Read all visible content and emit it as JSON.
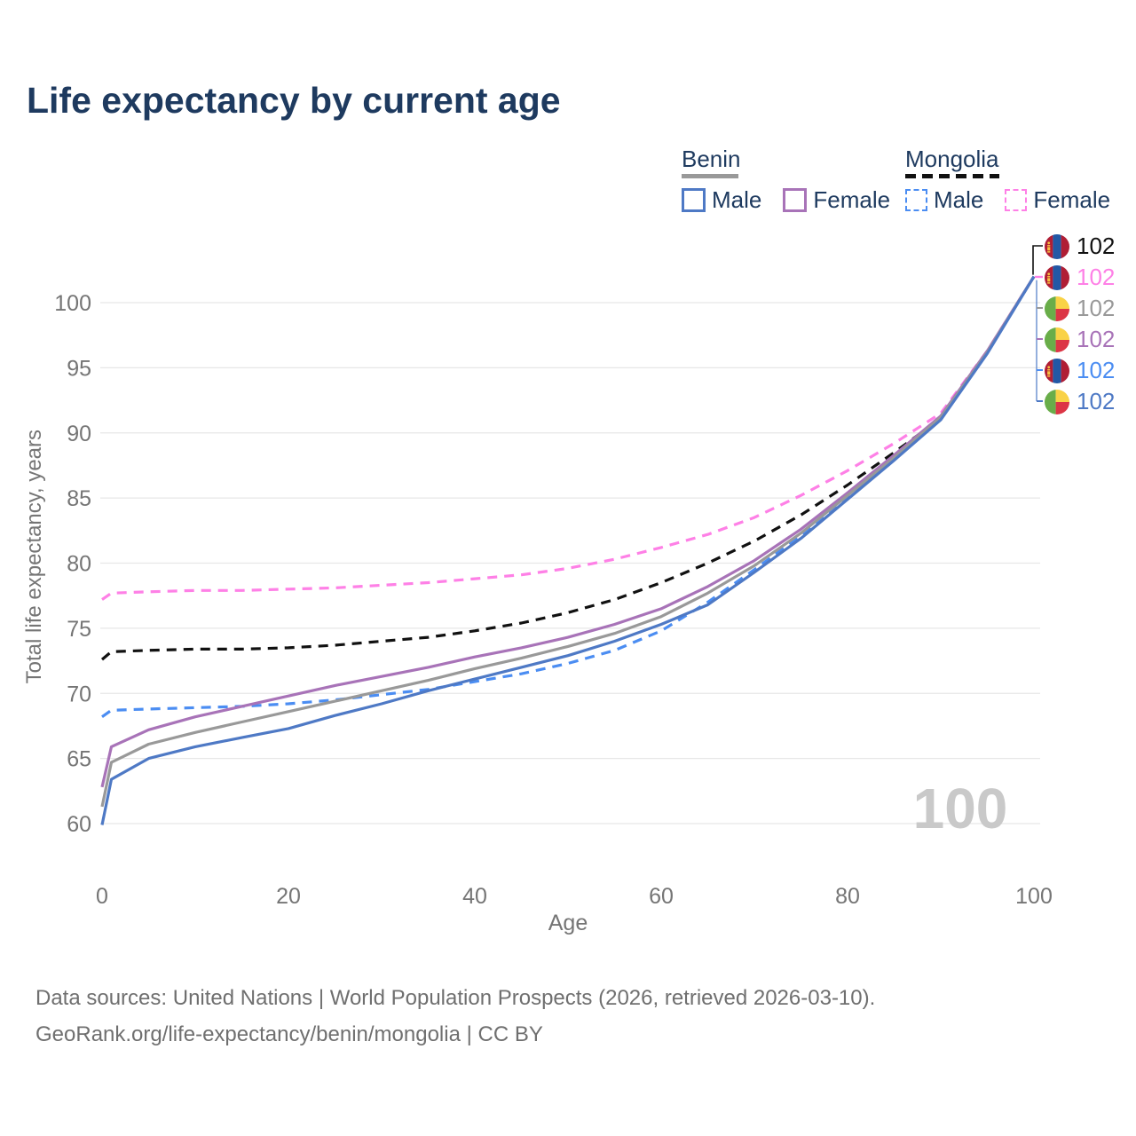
{
  "title": "Life expectancy by current age",
  "watermark": "100",
  "colors": {
    "title_text": "#1e3a5f",
    "axis_text": "#757575",
    "gridline": "#e7e7e7",
    "watermark": "#c9c9c9",
    "footer_text": "#6f6f6f"
  },
  "legend": {
    "groups": [
      {
        "country": "Benin",
        "line_style": "solid",
        "line_color": "#999999",
        "items": [
          {
            "label": "Male",
            "color": "#4e79c5",
            "dashed": false
          },
          {
            "label": "Female",
            "color": "#a873b8",
            "dashed": false
          }
        ]
      },
      {
        "country": "Mongolia",
        "line_style": "dashed",
        "line_color": "#111111",
        "items": [
          {
            "label": "Male",
            "color": "#4b8df2",
            "dashed": true
          },
          {
            "label": "Female",
            "color": "#fe80e6",
            "dashed": true
          }
        ]
      }
    ]
  },
  "chart_data": {
    "type": "line",
    "title": "Life expectancy by current age",
    "xlabel": "Age",
    "ylabel": "Total life expectancy, years",
    "xlim": [
      0,
      100
    ],
    "ylim": [
      60,
      100
    ],
    "x_ticks": [
      0,
      20,
      40,
      60,
      80,
      100
    ],
    "y_ticks": [
      60,
      65,
      70,
      75,
      80,
      85,
      90,
      95,
      100
    ],
    "grid": "horizontal",
    "legend_position": "top-right",
    "x": [
      0,
      1,
      5,
      10,
      15,
      20,
      25,
      30,
      35,
      40,
      45,
      50,
      55,
      60,
      65,
      70,
      75,
      80,
      85,
      90,
      95,
      100
    ],
    "series": [
      {
        "name": "Mongolia",
        "country": "Mongolia",
        "sex": "both",
        "dashed": true,
        "color": "#111111",
        "end_label": "102",
        "values": [
          72.6,
          73.2,
          73.3,
          73.4,
          73.4,
          73.5,
          73.7,
          74.0,
          74.3,
          74.8,
          75.4,
          76.2,
          77.2,
          78.5,
          80.0,
          81.7,
          83.7,
          86.0,
          88.5,
          91.1,
          96.2,
          102
        ]
      },
      {
        "name": "Mongolia — Female",
        "country": "Mongolia",
        "sex": "female",
        "dashed": true,
        "color": "#fe80e6",
        "end_label": "102",
        "values": [
          77.2,
          77.7,
          77.8,
          77.9,
          77.9,
          78.0,
          78.1,
          78.3,
          78.5,
          78.8,
          79.1,
          79.6,
          80.3,
          81.2,
          82.2,
          83.5,
          85.2,
          87.1,
          89.2,
          91.5,
          96.3,
          102
        ]
      },
      {
        "name": "Benin",
        "country": "Benin",
        "sex": "both",
        "dashed": false,
        "color": "#999999",
        "end_label": "102",
        "values": [
          61.3,
          64.7,
          66.1,
          67.0,
          67.8,
          68.6,
          69.4,
          70.2,
          71.0,
          71.9,
          72.7,
          73.6,
          74.6,
          75.9,
          77.7,
          79.8,
          82.3,
          85.2,
          88.1,
          91.2,
          96.2,
          102
        ]
      },
      {
        "name": "Benin — Female",
        "country": "Benin",
        "sex": "female",
        "dashed": false,
        "color": "#a873b8",
        "end_label": "102",
        "values": [
          62.8,
          65.9,
          67.2,
          68.2,
          69.0,
          69.8,
          70.6,
          71.3,
          72.0,
          72.8,
          73.5,
          74.3,
          75.3,
          76.5,
          78.2,
          80.2,
          82.6,
          85.4,
          88.3,
          91.3,
          96.3,
          102
        ]
      },
      {
        "name": "Mongolia — Male",
        "country": "Mongolia",
        "sex": "male",
        "dashed": true,
        "color": "#4b8df2",
        "end_label": "102",
        "values": [
          68.2,
          68.7,
          68.8,
          68.9,
          69.0,
          69.2,
          69.5,
          69.9,
          70.3,
          70.9,
          71.5,
          72.3,
          73.3,
          74.8,
          77.0,
          79.5,
          82.1,
          85.1,
          88.1,
          91.2,
          96.2,
          102
        ]
      },
      {
        "name": "Benin — Male",
        "country": "Benin",
        "sex": "male",
        "dashed": false,
        "color": "#4e79c5",
        "end_label": "102",
        "values": [
          59.9,
          63.4,
          65.0,
          65.9,
          66.6,
          67.3,
          68.3,
          69.2,
          70.2,
          71.1,
          72.0,
          72.9,
          74.0,
          75.3,
          76.8,
          79.3,
          81.9,
          84.9,
          87.9,
          91.0,
          96.1,
          102
        ]
      }
    ]
  },
  "footer": {
    "line1": "Data sources: United Nations | World Population Prospects (2026, retrieved 2026-03-10).",
    "line2": "GeoRank.org/life-expectancy/benin/mongolia | CC BY"
  }
}
